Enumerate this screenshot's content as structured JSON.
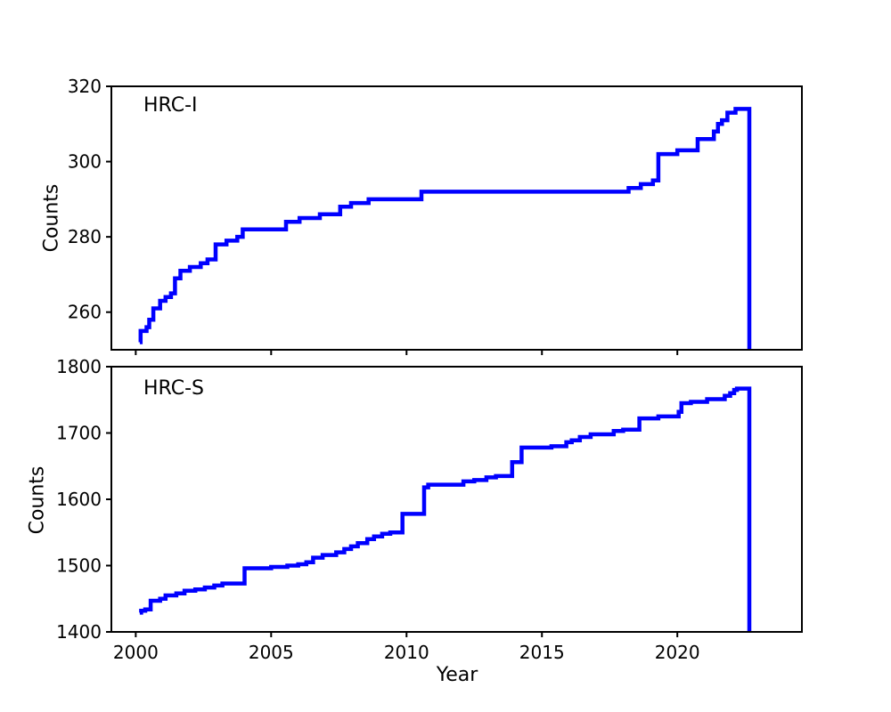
{
  "figure": {
    "background_color": "#ffffff",
    "axis_color": "#000000",
    "line_color": "#0000ff"
  },
  "chart_data": [
    {
      "type": "line",
      "step": true,
      "panel": "top",
      "annotation": "HRC-I",
      "ylabel": "Counts",
      "xlabel": "",
      "xlim": [
        1999.1,
        2024.6
      ],
      "ylim": [
        250,
        320
      ],
      "xticks": [
        2000,
        2005,
        2010,
        2015,
        2020
      ],
      "yticks": [
        260,
        280,
        300,
        320
      ],
      "show_xtick_labels": false,
      "grid": false,
      "legend": "none",
      "line_color": "#0000ff",
      "points": [
        [
          2000.15,
          252
        ],
        [
          2000.18,
          255
        ],
        [
          2000.4,
          256
        ],
        [
          2000.5,
          258
        ],
        [
          2000.65,
          261
        ],
        [
          2000.9,
          263
        ],
        [
          2001.1,
          264
        ],
        [
          2001.3,
          265
        ],
        [
          2001.45,
          269
        ],
        [
          2001.65,
          271
        ],
        [
          2002.0,
          272
        ],
        [
          2002.4,
          273
        ],
        [
          2002.65,
          274
        ],
        [
          2002.95,
          278
        ],
        [
          2003.35,
          279
        ],
        [
          2003.75,
          280
        ],
        [
          2003.95,
          282
        ],
        [
          2005.55,
          284
        ],
        [
          2006.05,
          285
        ],
        [
          2006.8,
          286
        ],
        [
          2007.55,
          288
        ],
        [
          2007.95,
          289
        ],
        [
          2008.6,
          290
        ],
        [
          2010.55,
          292
        ],
        [
          2018.2,
          293
        ],
        [
          2018.65,
          294
        ],
        [
          2019.1,
          295
        ],
        [
          2019.3,
          302
        ],
        [
          2020.0,
          303
        ],
        [
          2020.75,
          306
        ],
        [
          2021.35,
          308
        ],
        [
          2021.5,
          310
        ],
        [
          2021.65,
          311
        ],
        [
          2021.85,
          313
        ],
        [
          2022.15,
          314
        ]
      ],
      "end_drop_year": 2022.66
    },
    {
      "type": "line",
      "step": true,
      "panel": "bottom",
      "annotation": "HRC-S",
      "ylabel": "Counts",
      "xlabel": "Year",
      "xlim": [
        1999.1,
        2024.6
      ],
      "ylim": [
        1400,
        1800
      ],
      "xticks": [
        2000,
        2005,
        2010,
        2015,
        2020
      ],
      "yticks": [
        1400,
        1500,
        1600,
        1700,
        1800
      ],
      "show_xtick_labels": true,
      "grid": false,
      "legend": "none",
      "line_color": "#0000ff",
      "points": [
        [
          2000.15,
          1429
        ],
        [
          2000.2,
          1432
        ],
        [
          2000.35,
          1434
        ],
        [
          2000.55,
          1447
        ],
        [
          2000.9,
          1450
        ],
        [
          2001.1,
          1455
        ],
        [
          2001.5,
          1458
        ],
        [
          2001.8,
          1462
        ],
        [
          2002.2,
          1464
        ],
        [
          2002.55,
          1467
        ],
        [
          2002.9,
          1470
        ],
        [
          2003.2,
          1473
        ],
        [
          2004.02,
          1496
        ],
        [
          2005.0,
          1498
        ],
        [
          2005.6,
          1500
        ],
        [
          2006.0,
          1502
        ],
        [
          2006.3,
          1505
        ],
        [
          2006.55,
          1512
        ],
        [
          2006.9,
          1516
        ],
        [
          2007.4,
          1520
        ],
        [
          2007.7,
          1525
        ],
        [
          2007.95,
          1529
        ],
        [
          2008.2,
          1534
        ],
        [
          2008.55,
          1540
        ],
        [
          2008.8,
          1544
        ],
        [
          2009.1,
          1548
        ],
        [
          2009.4,
          1550
        ],
        [
          2009.85,
          1578
        ],
        [
          2010.65,
          1618
        ],
        [
          2010.8,
          1622
        ],
        [
          2012.1,
          1627
        ],
        [
          2012.5,
          1629
        ],
        [
          2012.95,
          1633
        ],
        [
          2013.3,
          1635
        ],
        [
          2013.9,
          1656
        ],
        [
          2014.25,
          1678
        ],
        [
          2015.35,
          1680
        ],
        [
          2015.9,
          1686
        ],
        [
          2016.1,
          1689
        ],
        [
          2016.4,
          1694
        ],
        [
          2016.8,
          1698
        ],
        [
          2017.65,
          1703
        ],
        [
          2018.0,
          1705
        ],
        [
          2018.6,
          1722
        ],
        [
          2019.3,
          1725
        ],
        [
          2020.05,
          1732
        ],
        [
          2020.15,
          1745
        ],
        [
          2020.5,
          1747
        ],
        [
          2021.1,
          1751
        ],
        [
          2021.75,
          1756
        ],
        [
          2021.95,
          1760
        ],
        [
          2022.1,
          1765
        ],
        [
          2022.2,
          1767
        ]
      ],
      "end_drop_year": 2022.66
    }
  ]
}
